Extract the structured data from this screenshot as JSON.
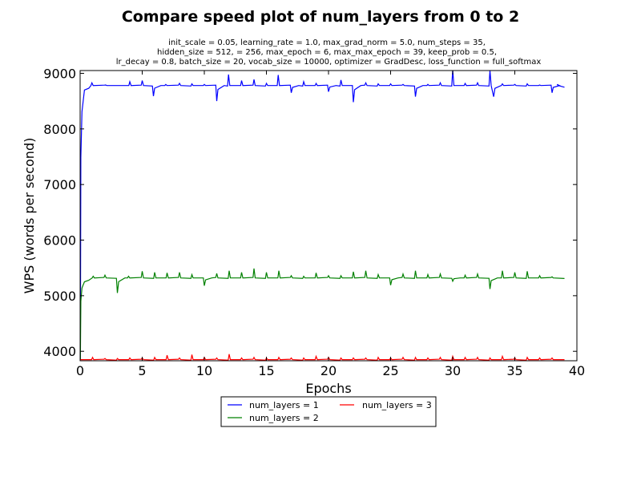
{
  "chart_data": {
    "type": "line",
    "title": "Compare speed plot of num_layers from 0 to 2",
    "subtitle_lines": [
      "init_scale = 0.05, learning_rate = 1.0, max_grad_norm = 5.0, num_steps = 35,",
      "hidden_size = 512,    = 256, max_epoch = 6, max_max_epoch = 39, keep_prob = 0.5,",
      "lr_decay = 0.8, batch_size = 20, vocab_size = 10000, optimizer = GradDesc, loss_function = full_softmax"
    ],
    "xlabel": "Epochs",
    "ylabel": "WPS (words per second)",
    "xlim": [
      0,
      40
    ],
    "ylim": [
      3830,
      9050
    ],
    "xticks": [
      0,
      5,
      10,
      15,
      20,
      25,
      30,
      35,
      40
    ],
    "yticks": [
      4000,
      5000,
      6000,
      7000,
      8000,
      9000
    ],
    "grid": false,
    "legend_position": "bottom-center-below",
    "series": [
      {
        "name": "num_layers = 1",
        "color": "#0000ff",
        "baseline": 8780,
        "start": 3850,
        "rise_to": 8700,
        "spikes": [
          [
            0.95,
            8830
          ],
          [
            2.05,
            8790
          ],
          [
            4.0,
            8850
          ],
          [
            5.0,
            8870
          ],
          [
            5.9,
            8590
          ],
          [
            6.9,
            8800
          ],
          [
            8.0,
            8820
          ],
          [
            9.0,
            8810
          ],
          [
            10.0,
            8800
          ],
          [
            11.0,
            8500
          ],
          [
            11.95,
            8980
          ],
          [
            13.0,
            8870
          ],
          [
            14.0,
            8890
          ],
          [
            15.0,
            8820
          ],
          [
            15.95,
            8970
          ],
          [
            17.0,
            8650
          ],
          [
            18.0,
            8850
          ],
          [
            19.0,
            8820
          ],
          [
            20.0,
            8670
          ],
          [
            21.0,
            8880
          ],
          [
            22.0,
            8480
          ],
          [
            23.0,
            8830
          ],
          [
            24.0,
            8810
          ],
          [
            25.0,
            8810
          ],
          [
            26.0,
            8800
          ],
          [
            27.0,
            8580
          ],
          [
            28.0,
            8800
          ],
          [
            29.0,
            8830
          ],
          [
            30.0,
            9060
          ],
          [
            31.0,
            8820
          ],
          [
            32.0,
            8830
          ],
          [
            33.0,
            9050
          ],
          [
            33.3,
            8580
          ],
          [
            34.0,
            8810
          ],
          [
            35.0,
            8800
          ],
          [
            36.0,
            8810
          ],
          [
            37.0,
            8790
          ],
          [
            38.0,
            8650
          ],
          [
            38.4,
            8800
          ]
        ],
        "end_x": 39,
        "end_y": 8750
      },
      {
        "name": "num_layers = 2",
        "color": "#008000",
        "baseline": 5320,
        "start": 3850,
        "rise_to": 5250,
        "spikes": [
          [
            1.05,
            5350
          ],
          [
            2.0,
            5370
          ],
          [
            3.0,
            5050
          ],
          [
            3.9,
            5350
          ],
          [
            5.0,
            5440
          ],
          [
            6.0,
            5420
          ],
          [
            7.0,
            5410
          ],
          [
            8.0,
            5420
          ],
          [
            9.0,
            5380
          ],
          [
            10.0,
            5180
          ],
          [
            11.0,
            5400
          ],
          [
            12.0,
            5450
          ],
          [
            13.0,
            5420
          ],
          [
            14.0,
            5490
          ],
          [
            15.0,
            5420
          ],
          [
            16.0,
            5450
          ],
          [
            17.0,
            5360
          ],
          [
            18.0,
            5350
          ],
          [
            19.0,
            5410
          ],
          [
            20.0,
            5360
          ],
          [
            21.0,
            5360
          ],
          [
            22.0,
            5430
          ],
          [
            23.0,
            5450
          ],
          [
            24.0,
            5380
          ],
          [
            25.0,
            5190
          ],
          [
            26.0,
            5390
          ],
          [
            27.0,
            5450
          ],
          [
            28.0,
            5380
          ],
          [
            29.0,
            5390
          ],
          [
            30.0,
            5260
          ],
          [
            31.0,
            5370
          ],
          [
            32.0,
            5390
          ],
          [
            33.0,
            5120
          ],
          [
            34.0,
            5450
          ],
          [
            35.0,
            5420
          ],
          [
            36.0,
            5440
          ],
          [
            37.0,
            5360
          ],
          [
            38.0,
            5340
          ]
        ],
        "end_x": 39,
        "end_y": 5310
      },
      {
        "name": "num_layers = 3",
        "color": "#ff0000",
        "baseline": 3850,
        "start": 3850,
        "rise_to": 3850,
        "spikes": [
          [
            1.0,
            3890
          ],
          [
            2.0,
            3870
          ],
          [
            3.0,
            3870
          ],
          [
            4.0,
            3880
          ],
          [
            5.0,
            3880
          ],
          [
            6.0,
            3890
          ],
          [
            7.0,
            3930
          ],
          [
            8.0,
            3880
          ],
          [
            9.0,
            3940
          ],
          [
            10.0,
            3890
          ],
          [
            11.0,
            3880
          ],
          [
            12.0,
            3950
          ],
          [
            13.0,
            3880
          ],
          [
            14.0,
            3890
          ],
          [
            15.0,
            3880
          ],
          [
            16.0,
            3890
          ],
          [
            17.0,
            3880
          ],
          [
            18.0,
            3880
          ],
          [
            19.0,
            3910
          ],
          [
            20.0,
            3890
          ],
          [
            21.0,
            3880
          ],
          [
            22.0,
            3880
          ],
          [
            23.0,
            3880
          ],
          [
            24.0,
            3890
          ],
          [
            25.0,
            3880
          ],
          [
            26.0,
            3890
          ],
          [
            27.0,
            3890
          ],
          [
            28.0,
            3880
          ],
          [
            29.0,
            3890
          ],
          [
            30.0,
            3910
          ],
          [
            31.0,
            3890
          ],
          [
            32.0,
            3890
          ],
          [
            33.0,
            3880
          ],
          [
            34.0,
            3910
          ],
          [
            35.0,
            3880
          ],
          [
            36.0,
            3890
          ],
          [
            37.0,
            3880
          ],
          [
            38.0,
            3880
          ]
        ],
        "end_x": 39,
        "end_y": 3850
      }
    ]
  }
}
